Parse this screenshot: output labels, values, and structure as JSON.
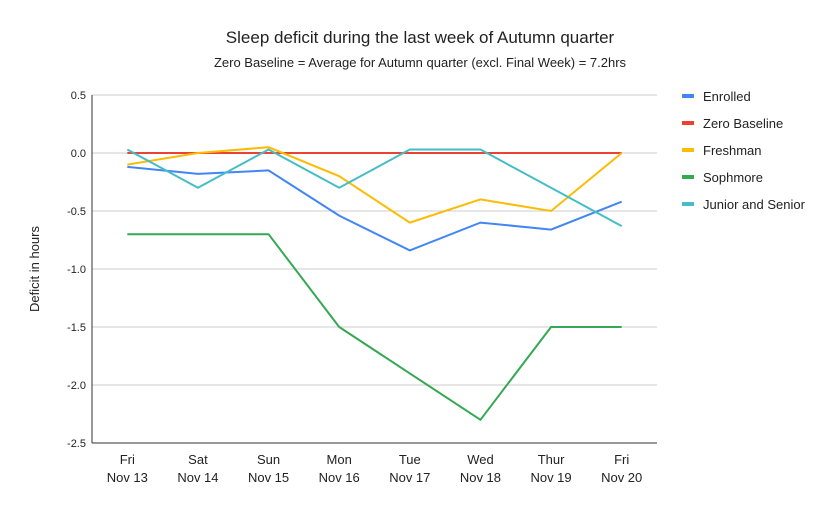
{
  "chart_data": {
    "type": "line",
    "title": "Sleep deficit during the last week of Autumn quarter",
    "subtitle": "Zero Baseline = Average for Autumn quarter (excl. Final Week) = 7.2hrs",
    "xlabel": "",
    "ylabel": "Deficit in hours",
    "ylim": [
      -2.5,
      0.5
    ],
    "yticks": [
      "0.5",
      "0.0",
      "-0.5",
      "-1.0",
      "-1.5",
      "-2.0",
      "-2.5"
    ],
    "ytick_values": [
      0.5,
      0.0,
      -0.5,
      -1.0,
      -1.5,
      -2.0,
      -2.5
    ],
    "categories": [
      [
        "Fri",
        "Nov 13"
      ],
      [
        "Sat",
        "Nov 14"
      ],
      [
        "Sun",
        "Nov 15"
      ],
      [
        "Mon",
        "Nov 16"
      ],
      [
        "Tue",
        "Nov 17"
      ],
      [
        "Wed",
        "Nov 18"
      ],
      [
        "Thur",
        "Nov 19"
      ],
      [
        "Fri",
        "Nov 20"
      ]
    ],
    "grid": true,
    "legend_position": "right",
    "series": [
      {
        "name": "Enrolled",
        "color": "#4285f4",
        "values": [
          -0.12,
          -0.18,
          -0.15,
          -0.54,
          -0.84,
          -0.6,
          -0.66,
          -0.42
        ]
      },
      {
        "name": "Zero Baseline",
        "color": "#ea4335",
        "values": [
          0,
          0,
          0,
          0,
          0,
          0,
          0,
          0
        ]
      },
      {
        "name": "Freshman",
        "color": "#fbbc04",
        "values": [
          -0.1,
          0,
          0.05,
          -0.2,
          -0.6,
          -0.4,
          -0.5,
          0
        ]
      },
      {
        "name": "Sophmore",
        "color": "#34a853",
        "values": [
          -0.7,
          -0.7,
          -0.7,
          -1.5,
          -1.9,
          -2.3,
          -1.5,
          -1.5
        ]
      },
      {
        "name": "Junior and Senior",
        "color": "#46bdc6",
        "values": [
          0.03,
          -0.3,
          0.03,
          -0.3,
          0.03,
          0.03,
          -0.3,
          -0.63
        ]
      }
    ]
  }
}
